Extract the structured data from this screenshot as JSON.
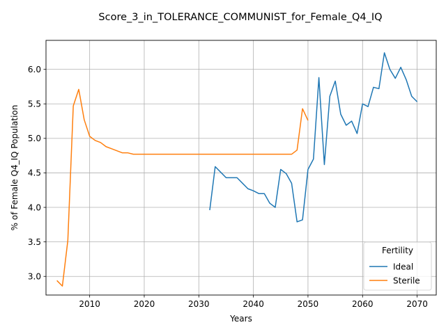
{
  "chart_data": {
    "type": "line",
    "title": "Score_3_in_TOLERANCE_COMMUNIST_for_Female_Q4_IQ",
    "xlabel": "Years",
    "ylabel": "% of Female Q4_IQ Population",
    "xlim": [
      2002.0,
      2073.5
    ],
    "ylim": [
      2.73,
      6.42
    ],
    "xticks": [
      2010,
      2020,
      2030,
      2040,
      2050,
      2060,
      2070
    ],
    "yticks": [
      3.0,
      3.5,
      4.0,
      4.5,
      5.0,
      5.5,
      6.0
    ],
    "xtick_labels": [
      "2010",
      "2020",
      "2030",
      "2040",
      "2050",
      "2060",
      "2070"
    ],
    "ytick_labels": [
      "3.0",
      "3.5",
      "4.0",
      "4.5",
      "5.0",
      "5.5",
      "6.0"
    ],
    "grid": true,
    "legend": {
      "title": "Fertility",
      "placement": "lower right"
    },
    "series": [
      {
        "name": "Ideal",
        "color": "#1f77b4",
        "x": [
          2032,
          2033,
          2034,
          2035,
          2036,
          2037,
          2038,
          2039,
          2040,
          2041,
          2042,
          2043,
          2044,
          2045,
          2046,
          2047,
          2048,
          2049,
          2050,
          2051,
          2052,
          2053,
          2054,
          2055,
          2056,
          2057,
          2058,
          2059,
          2060,
          2061,
          2062,
          2063,
          2064,
          2065,
          2066,
          2067,
          2068,
          2069,
          2070
        ],
        "y": [
          3.96,
          4.59,
          4.51,
          4.43,
          4.43,
          4.43,
          4.35,
          4.27,
          4.24,
          4.2,
          4.2,
          4.06,
          4.0,
          4.55,
          4.49,
          4.35,
          3.79,
          3.82,
          4.55,
          4.7,
          5.88,
          4.62,
          5.61,
          5.83,
          5.35,
          5.19,
          5.25,
          5.07,
          5.5,
          5.46,
          5.74,
          5.72,
          6.24,
          6.0,
          5.87,
          6.03,
          5.85,
          5.61,
          5.53
        ]
      },
      {
        "name": "Sterile",
        "color": "#ff7f0e",
        "x": [
          2004,
          2005,
          2006,
          2007,
          2008,
          2009,
          2010,
          2011,
          2012,
          2013,
          2014,
          2015,
          2016,
          2017,
          2018,
          2019,
          2020,
          2025,
          2030,
          2035,
          2040,
          2045,
          2046,
          2047,
          2048,
          2049,
          2050
        ],
        "y": [
          2.94,
          2.86,
          3.52,
          5.47,
          5.71,
          5.27,
          5.03,
          4.97,
          4.94,
          4.88,
          4.85,
          4.82,
          4.79,
          4.79,
          4.77,
          4.77,
          4.77,
          4.77,
          4.77,
          4.77,
          4.77,
          4.77,
          4.77,
          4.77,
          4.83,
          5.43,
          5.26
        ]
      }
    ]
  }
}
